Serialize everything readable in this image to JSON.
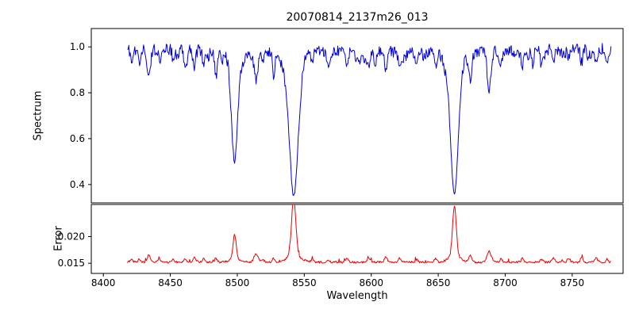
{
  "chart_data": {
    "type": "line",
    "title": "20070814_2137m26_013",
    "xlabel": "Wavelength",
    "xlim": [
      8391,
      8788
    ],
    "x_data_range": [
      8418,
      8779
    ],
    "xticks": [
      8400,
      8450,
      8500,
      8550,
      8600,
      8650,
      8700,
      8750
    ],
    "legend": "none",
    "grid": false,
    "seed": 20070814,
    "panels": [
      {
        "name": "spectrum",
        "ylabel": "Spectrum",
        "ylim": [
          0.32,
          1.08
        ],
        "yticks": [
          0.4,
          0.6,
          0.8,
          1.0
        ],
        "ytick_labels": [
          "0.4",
          "0.6",
          "0.8",
          "1.0"
        ],
        "color": "#0000dd",
        "continuum": 0.985,
        "continuum_wiggle": 0.006,
        "noise_amplitude": 0.05,
        "absorption_lines": [
          {
            "center": 8498.0,
            "depth": 0.43,
            "sigma": 2.4,
            "min_value": 0.53
          },
          {
            "center": 8542.1,
            "depth": 0.6,
            "sigma": 3.2,
            "min_value": 0.35
          },
          {
            "center": 8662.1,
            "depth": 0.59,
            "sigma": 2.9,
            "min_value": 0.36
          }
        ],
        "minor_lines": [
          {
            "center": 8421,
            "depth": 0.045,
            "sigma": 0.9
          },
          {
            "center": 8427,
            "depth": 0.05,
            "sigma": 0.9
          },
          {
            "center": 8434,
            "depth": 0.11,
            "sigma": 1.2
          },
          {
            "center": 8442,
            "depth": 0.05,
            "sigma": 0.9
          },
          {
            "center": 8452,
            "depth": 0.04,
            "sigma": 0.8
          },
          {
            "center": 8461,
            "depth": 0.05,
            "sigma": 0.9
          },
          {
            "center": 8468,
            "depth": 0.08,
            "sigma": 1.0
          },
          {
            "center": 8475,
            "depth": 0.05,
            "sigma": 0.9
          },
          {
            "center": 8484,
            "depth": 0.06,
            "sigma": 0.9
          },
          {
            "center": 8514,
            "depth": 0.13,
            "sigma": 1.4
          },
          {
            "center": 8519,
            "depth": 0.05,
            "sigma": 0.8
          },
          {
            "center": 8527,
            "depth": 0.06,
            "sigma": 0.9
          },
          {
            "center": 8556,
            "depth": 0.04,
            "sigma": 0.8
          },
          {
            "center": 8568,
            "depth": 0.04,
            "sigma": 0.8
          },
          {
            "center": 8582,
            "depth": 0.06,
            "sigma": 0.9
          },
          {
            "center": 8598,
            "depth": 0.07,
            "sigma": 1.0
          },
          {
            "center": 8611,
            "depth": 0.08,
            "sigma": 1.0
          },
          {
            "center": 8621,
            "depth": 0.06,
            "sigma": 0.9
          },
          {
            "center": 8634,
            "depth": 0.04,
            "sigma": 0.8
          },
          {
            "center": 8648,
            "depth": 0.06,
            "sigma": 0.9
          },
          {
            "center": 8674,
            "depth": 0.1,
            "sigma": 1.1
          },
          {
            "center": 8688,
            "depth": 0.17,
            "sigma": 1.4
          },
          {
            "center": 8697,
            "depth": 0.05,
            "sigma": 0.8
          },
          {
            "center": 8713,
            "depth": 0.06,
            "sigma": 0.9
          },
          {
            "center": 8727,
            "depth": 0.05,
            "sigma": 0.8
          },
          {
            "center": 8736,
            "depth": 0.07,
            "sigma": 0.9
          },
          {
            "center": 8747,
            "depth": 0.05,
            "sigma": 0.8
          },
          {
            "center": 8757,
            "depth": 0.06,
            "sigma": 0.9
          },
          {
            "center": 8768,
            "depth": 0.06,
            "sigma": 0.9
          },
          {
            "center": 8776,
            "depth": 0.05,
            "sigma": 0.8
          }
        ],
        "random_dips": {
          "count": 45,
          "depth_min": 0.01,
          "depth_max": 0.05,
          "sigma_min": 0.6,
          "sigma_max": 1.5
        }
      },
      {
        "name": "error",
        "ylabel": "Error",
        "ylim": [
          0.0131,
          0.026
        ],
        "yticks": [
          0.015,
          0.02
        ],
        "ytick_labels": [
          "0.015",
          "0.020"
        ],
        "color": "#ee0000",
        "baseline": 0.0152,
        "noise_amplitude": 0.0004,
        "minor_coupling": 0.012,
        "peaks": [
          {
            "center": 8498.0,
            "height": 0.0046,
            "width": 1.2,
            "peak_value": 0.0197
          },
          {
            "center": 8542.1,
            "height": 0.0105,
            "width": 1.6,
            "peak_value": 0.0256
          },
          {
            "center": 8662.1,
            "height": 0.0094,
            "width": 1.4,
            "peak_value": 0.0245
          }
        ]
      }
    ]
  }
}
